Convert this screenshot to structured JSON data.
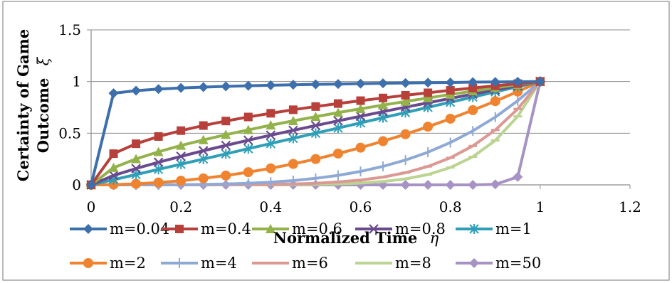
{
  "chart_data": {
    "type": "line",
    "xlabel": "Normalized Time",
    "xlabel_symbol": "η",
    "ylabel_line1": "Certainty of Game",
    "ylabel_line2": "Outcome",
    "ylabel_symbol": "ξ",
    "xlim": [
      0,
      1.2
    ],
    "ylim": [
      0,
      1.5
    ],
    "x_ticks": [
      "0",
      "0.2",
      "0.4",
      "0.6",
      "0.8",
      "1",
      "1.2"
    ],
    "y_ticks": [
      "0",
      "0.5",
      "1",
      "1.5"
    ],
    "grid": "horizontal",
    "legend_position": "bottom",
    "x": [
      0,
      0.05,
      0.1,
      0.15,
      0.2,
      0.25,
      0.3,
      0.35,
      0.4,
      0.45,
      0.5,
      0.55,
      0.6,
      0.65,
      0.7,
      0.75,
      0.8,
      0.85,
      0.9,
      0.95,
      1
    ],
    "series": [
      {
        "name": "m=0.04",
        "color": "#3d6fad",
        "marker": "diamond",
        "values": [
          0,
          0.887,
          0.912,
          0.927,
          0.938,
          0.946,
          0.953,
          0.959,
          0.964,
          0.969,
          0.973,
          0.976,
          0.98,
          0.983,
          0.986,
          0.989,
          0.991,
          0.994,
          0.996,
          0.998,
          1
        ]
      },
      {
        "name": "m=0.4",
        "color": "#b8403b",
        "marker": "square",
        "values": [
          0,
          0.302,
          0.398,
          0.468,
          0.525,
          0.574,
          0.618,
          0.657,
          0.693,
          0.727,
          0.758,
          0.787,
          0.815,
          0.841,
          0.867,
          0.891,
          0.915,
          0.937,
          0.959,
          0.98,
          1
        ]
      },
      {
        "name": "m=0.6",
        "color": "#93b24a",
        "marker": "triangle",
        "values": [
          0,
          0.166,
          0.251,
          0.32,
          0.381,
          0.435,
          0.486,
          0.532,
          0.577,
          0.619,
          0.66,
          0.699,
          0.736,
          0.772,
          0.807,
          0.841,
          0.875,
          0.907,
          0.939,
          0.97,
          1
        ]
      },
      {
        "name": "m=0.8",
        "color": "#6a4a8e",
        "marker": "x",
        "values": [
          0,
          0.091,
          0.158,
          0.219,
          0.276,
          0.33,
          0.382,
          0.432,
          0.481,
          0.528,
          0.574,
          0.62,
          0.664,
          0.708,
          0.752,
          0.794,
          0.837,
          0.878,
          0.919,
          0.96,
          1
        ]
      },
      {
        "name": "m=1",
        "color": "#2f9fb8",
        "marker": "asterisk",
        "values": [
          0,
          0.05,
          0.1,
          0.15,
          0.2,
          0.25,
          0.3,
          0.35,
          0.4,
          0.45,
          0.5,
          0.55,
          0.6,
          0.65,
          0.7,
          0.75,
          0.8,
          0.85,
          0.9,
          0.95,
          1
        ]
      },
      {
        "name": "m=2",
        "color": "#ef8330",
        "marker": "circle",
        "values": [
          0,
          0.003,
          0.01,
          0.023,
          0.04,
          0.063,
          0.09,
          0.123,
          0.16,
          0.203,
          0.25,
          0.303,
          0.36,
          0.423,
          0.49,
          0.563,
          0.64,
          0.723,
          0.81,
          0.903,
          1
        ]
      },
      {
        "name": "m=4",
        "color": "#8fa9d6",
        "marker": "plus",
        "values": [
          0,
          0,
          0,
          0.001,
          0.002,
          0.004,
          0.008,
          0.015,
          0.026,
          0.041,
          0.063,
          0.092,
          0.13,
          0.179,
          0.24,
          0.316,
          0.41,
          0.522,
          0.656,
          0.815,
          1
        ]
      },
      {
        "name": "m=6",
        "color": "#dc9893",
        "marker": "dash",
        "values": [
          0,
          0,
          0,
          0,
          0,
          0,
          0.001,
          0.002,
          0.004,
          0.008,
          0.016,
          0.028,
          0.047,
          0.075,
          0.118,
          0.178,
          0.262,
          0.377,
          0.531,
          0.735,
          1
        ]
      },
      {
        "name": "m=8",
        "color": "#bcd492",
        "marker": "dash",
        "values": [
          0,
          0,
          0,
          0,
          0,
          0,
          0,
          0,
          0.001,
          0.002,
          0.004,
          0.008,
          0.017,
          0.032,
          0.058,
          0.1,
          0.168,
          0.272,
          0.43,
          0.663,
          1
        ]
      },
      {
        "name": "m=50",
        "color": "#a692c4",
        "marker": "diamond",
        "values": [
          0,
          0,
          0,
          0,
          0,
          0,
          0,
          0,
          0,
          0,
          0,
          0,
          0,
          0,
          0,
          0,
          0,
          0,
          0.005,
          0.077,
          1
        ]
      }
    ]
  }
}
